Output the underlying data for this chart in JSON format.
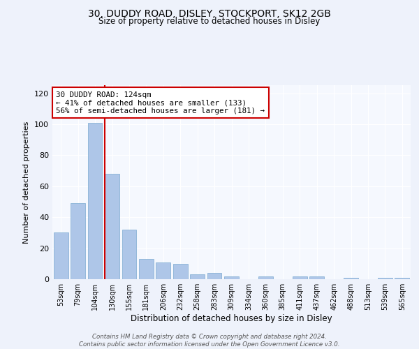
{
  "title1": "30, DUDDY ROAD, DISLEY, STOCKPORT, SK12 2GB",
  "title2": "Size of property relative to detached houses in Disley",
  "xlabel": "Distribution of detached houses by size in Disley",
  "ylabel": "Number of detached properties",
  "bin_labels": [
    "53sqm",
    "79sqm",
    "104sqm",
    "130sqm",
    "155sqm",
    "181sqm",
    "206sqm",
    "232sqm",
    "258sqm",
    "283sqm",
    "309sqm",
    "334sqm",
    "360sqm",
    "385sqm",
    "411sqm",
    "437sqm",
    "462sqm",
    "488sqm",
    "513sqm",
    "539sqm",
    "565sqm"
  ],
  "bar_heights": [
    30,
    49,
    101,
    68,
    32,
    13,
    11,
    10,
    3,
    4,
    2,
    0,
    2,
    0,
    2,
    2,
    0,
    1,
    0,
    1,
    1
  ],
  "bar_color": "#aec6e8",
  "bar_edge_color": "#7aaad0",
  "vline_color": "#cc0000",
  "annotation_box_text": "30 DUDDY ROAD: 124sqm\n← 41% of detached houses are smaller (133)\n56% of semi-detached houses are larger (181) →",
  "ylim": [
    0,
    125
  ],
  "yticks": [
    0,
    20,
    40,
    60,
    80,
    100,
    120
  ],
  "footer_text": "Contains HM Land Registry data © Crown copyright and database right 2024.\nContains public sector information licensed under the Open Government Licence v3.0.",
  "bg_color": "#eef2fb",
  "plot_bg_color": "#f5f8fe"
}
